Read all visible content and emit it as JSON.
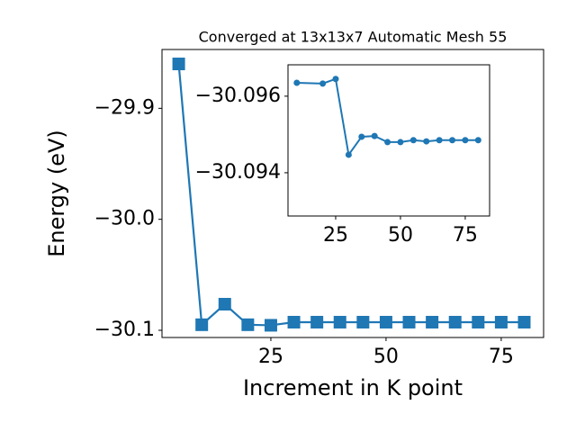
{
  "chart_data": [
    {
      "type": "line",
      "title": "Converged at 13x13x7 Automatic Mesh 55",
      "x_label": "Increment in K point",
      "y_label": "Energy (eV)",
      "x": [
        5,
        10,
        15,
        20,
        25,
        30,
        35,
        40,
        45,
        50,
        55,
        60,
        65,
        70,
        75,
        80
      ],
      "series": [
        {
          "name": "Energy",
          "color": "#1f77b4",
          "marker": "square",
          "values": [
            -29.86,
            -30.095,
            -30.0765,
            -30.095,
            -30.0955,
            -30.0927,
            -30.0927,
            -30.0927,
            -30.0927,
            -30.0927,
            -30.0927,
            -30.0927,
            -30.0927,
            -30.0927,
            -30.0927,
            -30.0927
          ]
        }
      ],
      "xlim": [
        1.37,
        84.2
      ],
      "ylim": [
        -30.1065,
        -29.847
      ],
      "xticks": [
        25,
        50,
        75
      ],
      "yticks": [
        {
          "value": -30.1,
          "label": "−30.1"
        },
        {
          "value": -30.0,
          "label": "−30.0"
        },
        {
          "value": -29.9,
          "label": "−29.9"
        }
      ]
    },
    {
      "type": "line",
      "x": [
        10,
        20,
        25,
        30,
        35,
        40,
        45,
        50,
        55,
        60,
        65,
        70,
        75,
        80
      ],
      "series": [
        {
          "name": "Energy",
          "color": "#1f77b4",
          "marker": "circle",
          "values": [
            -30.09635,
            -30.09633,
            -30.09645,
            -30.09447,
            -30.09494,
            -30.09496,
            -30.0948,
            -30.0948,
            -30.09485,
            -30.09482,
            -30.09485,
            -30.09485,
            -30.09485,
            -30.09485
          ]
        }
      ],
      "xlim": [
        6.6,
        84.4
      ],
      "ylim": [
        -30.09287,
        -30.09682
      ],
      "xticks": [
        25,
        50,
        75
      ],
      "yticks": [
        {
          "value": -30.094,
          "label": "−30.094"
        },
        {
          "value": -30.096,
          "label": "−30.096"
        }
      ]
    }
  ]
}
